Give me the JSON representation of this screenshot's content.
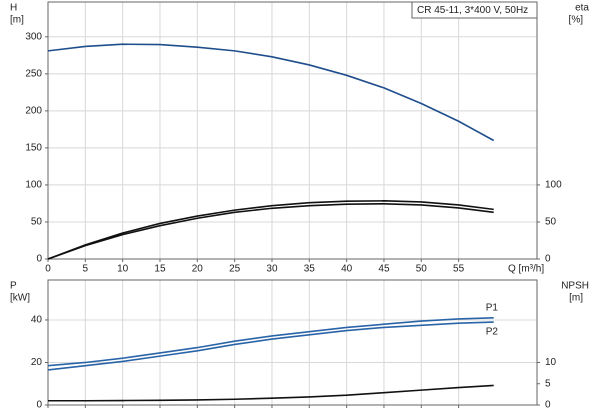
{
  "chart_data": [
    {
      "type": "line",
      "title": "CR 45-11, 3*400 V, 50Hz",
      "ylabel": "H",
      "yunit": "[m]",
      "y2label": "eta",
      "y2unit": "[%]",
      "xlabel": "Q [m³/h]",
      "x": [
        0,
        5,
        10,
        15,
        20,
        25,
        30,
        35,
        40,
        45,
        50,
        55,
        59.7
      ],
      "xlim": [
        0,
        65.5
      ],
      "xticks": [
        0,
        5,
        10,
        15,
        20,
        25,
        30,
        35,
        40,
        45,
        50,
        55
      ],
      "ylim": [
        0,
        347
      ],
      "yticks": [
        0,
        50,
        100,
        150,
        200,
        250,
        300
      ],
      "y2lim": [
        0,
        347
      ],
      "y2ticks": [
        0,
        50,
        100
      ],
      "grid": true,
      "series": [
        {
          "color": "#1f4e8c",
          "values": [
            281,
            287,
            290,
            289.5,
            286,
            281,
            273,
            262,
            248,
            231,
            210,
            186,
            160
          ]
        },
        {
          "color": "#111111",
          "axis": "y2",
          "values": [
            0,
            19,
            35,
            48,
            58,
            66,
            72,
            76,
            78,
            78.5,
            77,
            73,
            67
          ]
        },
        {
          "color": "#111111",
          "axis": "y2",
          "values": [
            0,
            18,
            33,
            45,
            55,
            63,
            68.5,
            72,
            74,
            74.5,
            73,
            69,
            63
          ]
        }
      ]
    },
    {
      "type": "line",
      "ylabel": "P",
      "yunit": "[kW]",
      "y2label": "NPSH",
      "y2unit": "[m]",
      "x": [
        0,
        5,
        10,
        15,
        20,
        25,
        30,
        35,
        40,
        45,
        50,
        55,
        59.7
      ],
      "xlim": [
        0,
        65.5
      ],
      "ylim": [
        0,
        58.8
      ],
      "yticks": [
        0,
        20,
        40
      ],
      "y2lim": [
        0,
        29.4
      ],
      "y2ticks": [
        0,
        5,
        10
      ],
      "grid": true,
      "series": [
        {
          "name": "P1",
          "color": "#2a64a8",
          "values": [
            18.5,
            20,
            22,
            24.5,
            27,
            30,
            32.5,
            34.5,
            36.5,
            38,
            39.5,
            40.5,
            41
          ]
        },
        {
          "name": "P2",
          "color": "#2a64a8",
          "values": [
            16.5,
            18.5,
            20.5,
            23,
            25.5,
            28.5,
            31,
            33,
            35,
            36.5,
            37.5,
            38.5,
            39
          ]
        },
        {
          "color": "#111111",
          "axis": "y2",
          "values": [
            1.0,
            1.0,
            1.05,
            1.1,
            1.2,
            1.35,
            1.6,
            1.9,
            2.3,
            2.9,
            3.5,
            4.1,
            4.6
          ]
        }
      ]
    }
  ]
}
